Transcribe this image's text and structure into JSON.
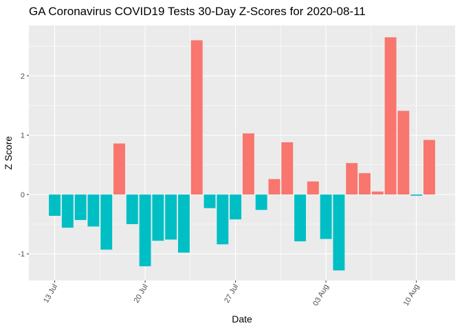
{
  "chart_data": {
    "type": "bar",
    "title": "GA Coronavirus COVID19 Tests 30-Day Z-Scores for 2020-08-11",
    "xlabel": "Date",
    "ylabel": "Z Score",
    "x_type": "date",
    "x_ticks": [
      {
        "date": "2020-07-13",
        "label": "13 Jul"
      },
      {
        "date": "2020-07-20",
        "label": "20 Jul"
      },
      {
        "date": "2020-07-27",
        "label": "27 Jul"
      },
      {
        "date": "2020-08-03",
        "label": "03 Aug"
      },
      {
        "date": "2020-08-10",
        "label": "10 Aug"
      }
    ],
    "y_ticks": [
      -1,
      0,
      1,
      2
    ],
    "ylim": [
      -1.45,
      2.85
    ],
    "xlim": [
      "2020-07-11",
      "2020-08-13"
    ],
    "grid": true,
    "legend": "none",
    "colors": {
      "positive": "#F8766D",
      "negative": "#00BFC4",
      "panel": "#EBEBEB",
      "grid": "#FFFFFF"
    },
    "dates": [
      "2020-07-13",
      "2020-07-14",
      "2020-07-15",
      "2020-07-16",
      "2020-07-17",
      "2020-07-18",
      "2020-07-19",
      "2020-07-20",
      "2020-07-21",
      "2020-07-22",
      "2020-07-23",
      "2020-07-24",
      "2020-07-25",
      "2020-07-26",
      "2020-07-27",
      "2020-07-28",
      "2020-07-29",
      "2020-07-30",
      "2020-07-31",
      "2020-08-01",
      "2020-08-02",
      "2020-08-03",
      "2020-08-04",
      "2020-08-05",
      "2020-08-06",
      "2020-08-07",
      "2020-08-08",
      "2020-08-09",
      "2020-08-10",
      "2020-08-11"
    ],
    "values": [
      -0.36,
      -0.56,
      -0.43,
      -0.54,
      -0.93,
      0.86,
      -0.5,
      -1.21,
      -0.78,
      -0.76,
      -0.98,
      2.6,
      -0.23,
      -0.84,
      -0.42,
      1.03,
      -0.26,
      0.26,
      0.88,
      -0.79,
      0.22,
      -0.75,
      -1.28,
      0.53,
      0.36,
      0.05,
      2.65,
      1.41,
      -0.02,
      0.92
    ]
  }
}
